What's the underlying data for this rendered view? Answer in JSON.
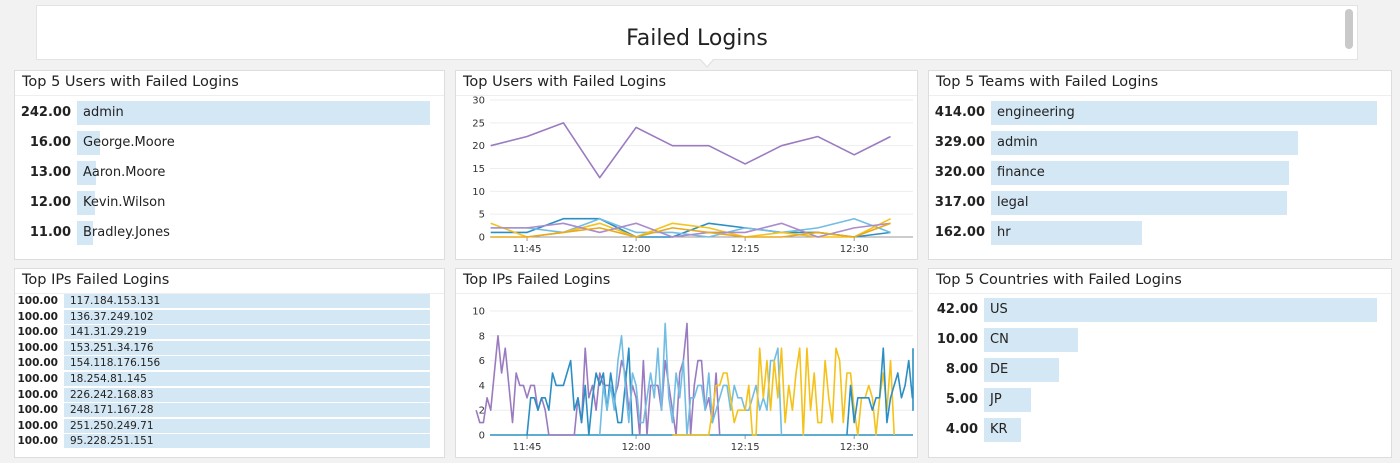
{
  "note": {
    "title": "Failed Logins"
  },
  "widgets": {
    "top_users": {
      "title": "Top 5 Users with Failed Logins",
      "items": [
        {
          "value": "242.00",
          "n": 242,
          "label": "admin"
        },
        {
          "value": "16.00",
          "n": 16,
          "label": "George.Moore"
        },
        {
          "value": "13.00",
          "n": 13,
          "label": "Aaron.Moore"
        },
        {
          "value": "12.00",
          "n": 12,
          "label": "Kevin.Wilson"
        },
        {
          "value": "11.00",
          "n": 11,
          "label": "Bradley.Jones"
        }
      ]
    },
    "top_teams": {
      "title": "Top 5 Teams with Failed Logins",
      "items": [
        {
          "value": "414.00",
          "n": 414,
          "label": "engineering"
        },
        {
          "value": "329.00",
          "n": 329,
          "label": "admin"
        },
        {
          "value": "320.00",
          "n": 320,
          "label": "finance"
        },
        {
          "value": "317.00",
          "n": 317,
          "label": "legal"
        },
        {
          "value": "162.00",
          "n": 162,
          "label": "hr"
        }
      ]
    },
    "top_ips": {
      "title": "Top IPs Failed Logins",
      "items": [
        {
          "value": "100.00",
          "n": 100,
          "label": "117.184.153.131"
        },
        {
          "value": "100.00",
          "n": 100,
          "label": "136.37.249.102"
        },
        {
          "value": "100.00",
          "n": 100,
          "label": "141.31.29.219"
        },
        {
          "value": "100.00",
          "n": 100,
          "label": "153.251.34.176"
        },
        {
          "value": "100.00",
          "n": 100,
          "label": "154.118.176.156"
        },
        {
          "value": "100.00",
          "n": 100,
          "label": "18.254.81.145"
        },
        {
          "value": "100.00",
          "n": 100,
          "label": "226.242.168.83"
        },
        {
          "value": "100.00",
          "n": 100,
          "label": "248.171.167.28"
        },
        {
          "value": "100.00",
          "n": 100,
          "label": "251.250.249.71"
        },
        {
          "value": "100.00",
          "n": 100,
          "label": "95.228.251.151"
        }
      ]
    },
    "top_countries": {
      "title": "Top 5 Countries with Failed Logins",
      "items": [
        {
          "value": "42.00",
          "n": 42,
          "label": "US"
        },
        {
          "value": "10.00",
          "n": 10,
          "label": "CN"
        },
        {
          "value": "8.00",
          "n": 8,
          "label": "DE"
        },
        {
          "value": "5.00",
          "n": 5,
          "label": "JP"
        },
        {
          "value": "4.00",
          "n": 4,
          "label": "KR"
        }
      ]
    },
    "users_chart": {
      "title": "Top Users with Failed Logins"
    },
    "ips_chart": {
      "title": "Top IPs Failed Logins"
    }
  },
  "chart_data": [
    {
      "type": "line",
      "title": "Top Users with Failed Logins",
      "ylim": [
        0,
        30
      ],
      "yticks": [
        0,
        5,
        10,
        15,
        20,
        25,
        30
      ],
      "xticks": [
        "11:45",
        "12:00",
        "12:15",
        "12:30"
      ],
      "grid": true,
      "series": [
        {
          "color": "#9b7bbf",
          "start": "11:40",
          "step_min": 5,
          "values": [
            20,
            22,
            25,
            13,
            24,
            20,
            20,
            16,
            20,
            22,
            18,
            22
          ]
        },
        {
          "color": "#2c8fc4",
          "start": "11:40",
          "step_min": 5,
          "values": [
            1,
            1,
            4,
            4,
            0,
            0,
            3,
            2,
            1,
            1,
            0,
            1
          ]
        },
        {
          "color": "#72bde3",
          "start": "11:40",
          "step_min": 5,
          "values": [
            2,
            2,
            1,
            4,
            1,
            1,
            0,
            2,
            1,
            2,
            4,
            1
          ]
        },
        {
          "color": "#f4c21a",
          "start": "11:40",
          "step_min": 5,
          "values": [
            3,
            0,
            1,
            3,
            0,
            3,
            2,
            0,
            1,
            0,
            0,
            4
          ]
        },
        {
          "color": "#a98ccc",
          "start": "11:40",
          "step_min": 5,
          "values": [
            2,
            2,
            3,
            1,
            3,
            0,
            1,
            1,
            3,
            0,
            2,
            3
          ]
        },
        {
          "color": "#e8a921",
          "start": "11:40",
          "step_min": 5,
          "values": [
            0,
            0,
            1,
            2,
            0,
            2,
            1,
            0,
            0,
            1,
            0,
            3
          ]
        }
      ]
    },
    {
      "type": "line",
      "title": "Top IPs Failed Logins",
      "ylim": [
        0,
        10
      ],
      "yticks": [
        0,
        2,
        4,
        6,
        8,
        10
      ],
      "xticks": [
        "11:45",
        "12:00",
        "12:15",
        "12:30"
      ],
      "grid": true,
      "series": [
        {
          "color": "#2c8fc4",
          "start": "11:38",
          "step_min": 60,
          "values": [
            0,
            0
          ]
        },
        {
          "color": "#9b7bbf",
          "start": "11:38",
          "step_min": 0.5,
          "values": [
            2,
            1,
            1,
            3,
            2,
            5,
            8,
            5,
            7,
            4,
            1,
            5,
            4,
            4,
            3,
            4,
            4,
            2,
            3,
            2,
            0,
            0,
            0,
            0,
            0,
            0,
            0,
            0,
            3,
            1,
            7,
            3,
            4,
            2,
            5,
            4,
            4,
            4,
            3,
            4,
            6,
            5,
            2,
            4,
            3,
            0,
            6,
            0,
            4,
            4,
            4,
            2,
            6,
            4,
            2,
            0,
            5,
            6,
            9,
            0,
            4,
            6,
            6,
            2,
            3,
            1,
            5,
            0
          ]
        },
        {
          "color": "#2c8fc4",
          "start": "11:45",
          "step_min": 0.5,
          "values": [
            0,
            3,
            3,
            2,
            3,
            3,
            2,
            5,
            4,
            4,
            4,
            5,
            6,
            2,
            3,
            1,
            4,
            0,
            3,
            5,
            4,
            5,
            2,
            5,
            3,
            1,
            1,
            4,
            7,
            0
          ]
        },
        {
          "color": "#72bde3",
          "start": "11:55",
          "step_min": 0.5,
          "values": [
            0,
            4,
            2,
            4,
            2,
            6,
            8,
            4,
            1,
            5,
            4,
            1,
            1,
            3,
            5,
            3,
            7,
            2,
            9,
            3,
            1,
            5,
            3,
            6,
            0,
            3,
            3,
            4,
            4,
            2,
            5,
            1,
            2,
            3,
            4,
            4,
            2,
            4,
            3,
            3,
            2,
            2,
            3,
            4,
            2,
            3,
            2,
            6,
            6,
            7,
            0
          ]
        },
        {
          "color": "#f4c21a",
          "start": "12:05",
          "step_min": 0.5,
          "values": [
            0,
            0,
            0,
            0,
            0,
            0,
            0,
            0,
            0,
            0,
            0,
            2,
            4,
            4,
            5,
            5,
            3,
            1,
            2,
            2,
            2,
            4,
            0,
            0,
            7,
            3,
            6,
            2,
            6,
            3,
            7,
            1,
            4,
            2,
            5,
            7,
            0,
            7,
            2,
            5,
            1,
            1,
            6,
            3,
            1,
            7,
            6,
            1,
            5,
            5,
            2,
            0,
            3,
            3,
            4,
            3,
            0,
            3,
            5,
            2,
            6,
            0
          ]
        },
        {
          "color": "#2c8fc4",
          "start": "12:29",
          "step_min": 0.5,
          "values": [
            0,
            4,
            1,
            3,
            3,
            3,
            3,
            2,
            3,
            3,
            7,
            1,
            3,
            4,
            5,
            3,
            4,
            6,
            3,
            3,
            5,
            2,
            7
          ]
        }
      ]
    }
  ]
}
